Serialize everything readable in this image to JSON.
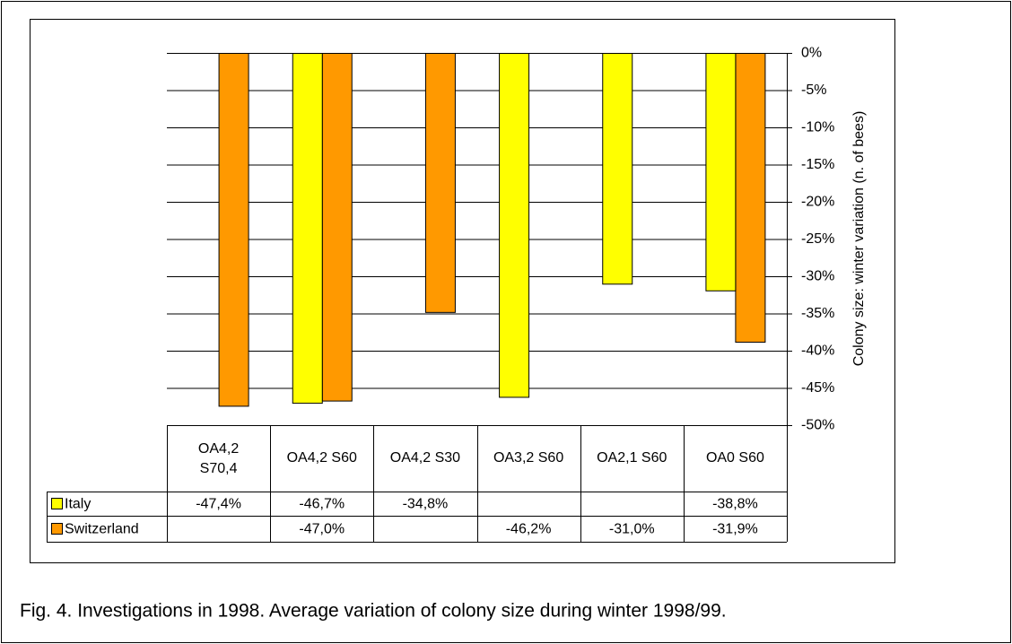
{
  "chart_data": {
    "type": "bar",
    "caption": "Fig. 4. Investigations in 1998. Average variation of colony size during winter 1998/99.",
    "y_label": "Colony size: winter variation (n. of bees)",
    "categories": [
      "OA4,2 S70,4",
      "OA4,2 S60",
      "OA4,2 S30",
      "OA3,2 S60",
      "OA2,1 S60",
      "OA0 S60"
    ],
    "series": [
      {
        "name": "Italy",
        "color": "#ffff00",
        "values": [
          -47.4,
          -46.7,
          -34.8,
          null,
          null,
          -38.8
        ],
        "value_labels": [
          "-47,4%",
          "-46,7%",
          "-34,8%",
          null,
          null,
          "-38,8%"
        ]
      },
      {
        "name": "Switzerland",
        "color": "#ff9900",
        "values": [
          null,
          -47.0,
          null,
          -46.2,
          -31.0,
          -31.9
        ],
        "value_labels": [
          null,
          "-47,0%",
          null,
          "-46,2%",
          "-31,0%",
          "-31,9%"
        ]
      }
    ],
    "ylim": [
      -50,
      0
    ],
    "yticks": [
      {
        "value": 0,
        "label": "0%"
      },
      {
        "value": -5,
        "label": "-5%"
      },
      {
        "value": -10,
        "label": "-10%"
      },
      {
        "value": -15,
        "label": "-15%"
      },
      {
        "value": -20,
        "label": "-20%"
      },
      {
        "value": -25,
        "label": "-25%"
      },
      {
        "value": -30,
        "label": "-30%"
      },
      {
        "value": -35,
        "label": "-35%"
      },
      {
        "value": -40,
        "label": "-40%"
      },
      {
        "value": -45,
        "label": "-45%"
      },
      {
        "value": -50,
        "label": "-50%"
      }
    ],
    "grid": true,
    "y_axis_side": "right",
    "data_table": true
  }
}
